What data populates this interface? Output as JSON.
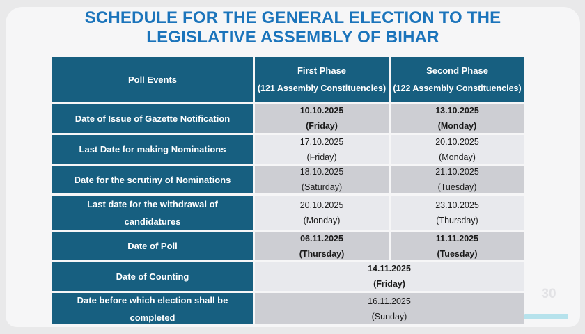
{
  "title": {
    "line1": "SCHEDULE FOR THE GENERAL ELECTION TO THE",
    "line2": "LEGISLATIVE ASSEMBLY OF BIHAR"
  },
  "page_number": "30",
  "colors": {
    "header_teal": "#175F80",
    "title_blue": "#1B74BB",
    "row_gray": "#CDCED3",
    "row_light": "#E8E9ED",
    "accent_cyan": "#B6E2EC",
    "slide_bg": "#F6F6F7",
    "page_bg": "#E9E9EA"
  },
  "table": {
    "headers": {
      "events": "Poll Events",
      "first_phase_title": "First Phase",
      "first_phase_sub": "(121 Assembly Constituencies)",
      "second_phase_title": "Second Phase",
      "second_phase_sub": "(122 Assembly Constituencies)"
    },
    "rows": [
      {
        "event": "Date of Issue of Gazette Notification",
        "first_date": "10.10.2025",
        "first_day": "(Friday)",
        "second_date": "13.10.2025",
        "second_day": "(Monday)",
        "emphasis": true,
        "merged": false
      },
      {
        "event": "Last Date for making Nominations",
        "first_date": "17.10.2025",
        "first_day": "(Friday)",
        "second_date": "20.10.2025",
        "second_day": "(Monday)",
        "emphasis": false,
        "merged": false
      },
      {
        "event": "Date for the scrutiny of Nominations",
        "first_date": "18.10.2025",
        "first_day": "(Saturday)",
        "second_date": "21.10.2025",
        "second_day": "(Tuesday)",
        "emphasis": false,
        "merged": false
      },
      {
        "event": "Last date for the withdrawal of candidatures",
        "first_date": "20.10.2025",
        "first_day": "(Monday)",
        "second_date": "23.10.2025",
        "second_day": "(Thursday)",
        "emphasis": false,
        "merged": false
      },
      {
        "event": "Date of Poll",
        "first_date": "06.11.2025",
        "first_day": "(Thursday)",
        "second_date": "11.11.2025",
        "second_day": "(Tuesday)",
        "emphasis": true,
        "merged": false
      },
      {
        "event": "Date of Counting",
        "date": "14.11.2025",
        "day": "(Friday)",
        "emphasis": true,
        "merged": true
      },
      {
        "event": "Date before which election shall be completed",
        "date": "16.11.2025",
        "day": "(Sunday)",
        "emphasis": false,
        "merged": true
      }
    ]
  }
}
